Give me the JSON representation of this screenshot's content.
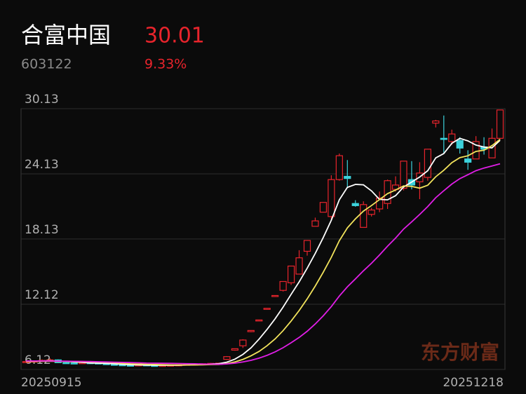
{
  "header": {
    "name": "合富中国",
    "price": "30.01",
    "code": "603122",
    "change": "9.33%"
  },
  "watermark": "东方财富",
  "chart_data": {
    "type": "candlestick",
    "categories": [
      "20250915",
      null,
      null,
      null,
      null,
      null,
      null,
      null,
      null,
      null,
      null,
      null,
      null,
      null,
      null,
      null,
      null,
      null,
      null,
      null,
      null,
      null,
      null,
      null,
      null,
      null,
      null,
      null,
      null,
      null,
      null,
      null,
      null,
      null,
      null,
      null,
      null,
      null,
      null,
      null,
      null,
      null,
      null,
      null,
      null,
      null,
      null,
      null,
      null,
      null,
      null,
      null,
      null,
      null,
      null,
      null,
      null,
      null,
      null,
      "20251218"
    ],
    "open": [
      6.8,
      6.85,
      6.9,
      6.95,
      7.0,
      6.75,
      6.72,
      6.7,
      6.75,
      6.72,
      6.66,
      6.6,
      6.56,
      6.52,
      6.5,
      6.55,
      6.5,
      6.48,
      6.5,
      6.52,
      6.55,
      6.6,
      6.62,
      6.65,
      6.68,
      7.05,
      7.9,
      8.3,
      9.6,
      10.6,
      11.7,
      12.93,
      13.4,
      14.1,
      14.9,
      17.0,
      19.3,
      20.6,
      20.2,
      23.6,
      23.9,
      21.4,
      19.2,
      20.4,
      20.9,
      21.4,
      22.7,
      22.8,
      23.6,
      23.4,
      23.8,
      28.8,
      27.4,
      27.1,
      27.2,
      25.5,
      25.5,
      26.6,
      25.6,
      27.4
    ],
    "high": [
      6.9,
      6.95,
      7.05,
      7.15,
      7.05,
      6.8,
      6.76,
      6.78,
      6.78,
      6.74,
      6.68,
      6.62,
      6.58,
      6.54,
      6.58,
      6.57,
      6.52,
      6.52,
      6.55,
      6.58,
      6.63,
      6.65,
      6.68,
      6.72,
      6.74,
      7.35,
      8.05,
      8.9,
      9.71,
      10.68,
      11.75,
      12.93,
      14.22,
      15.64,
      17.1,
      18.0,
      20.1,
      21.5,
      24.0,
      26.0,
      25.4,
      21.7,
      21.6,
      21.0,
      22.5,
      23.6,
      23.9,
      25.3,
      25.3,
      25.2,
      26.4,
      29.1,
      29.5,
      28.2,
      27.5,
      26.3,
      27.6,
      27.5,
      28.3,
      30.01
    ],
    "low": [
      6.78,
      6.82,
      6.86,
      6.92,
      6.72,
      6.66,
      6.66,
      6.68,
      6.7,
      6.62,
      6.58,
      6.52,
      6.48,
      6.47,
      6.48,
      6.47,
      6.45,
      6.46,
      6.48,
      6.5,
      6.53,
      6.58,
      6.6,
      6.63,
      6.66,
      7.0,
      7.85,
      8.1,
      9.55,
      10.6,
      11.7,
      12.93,
      13.3,
      13.9,
      14.9,
      16.6,
      19.3,
      20.6,
      19.9,
      23.5,
      22.8,
      21.1,
      19.2,
      20.2,
      20.6,
      20.9,
      22.5,
      22.6,
      22.7,
      21.8,
      23.5,
      28.4,
      26.0,
      26.8,
      26.0,
      24.5,
      25.5,
      25.9,
      25.6,
      27.3
    ],
    "close": [
      6.85,
      6.9,
      6.95,
      7.0,
      6.75,
      6.7,
      6.7,
      6.75,
      6.72,
      6.65,
      6.6,
      6.55,
      6.5,
      6.5,
      6.55,
      6.5,
      6.48,
      6.5,
      6.52,
      6.55,
      6.6,
      6.62,
      6.65,
      6.68,
      6.7,
      7.3,
      8.03,
      8.83,
      9.71,
      10.68,
      11.75,
      12.93,
      14.22,
      15.64,
      16.4,
      18.0,
      19.8,
      21.5,
      23.6,
      25.8,
      23.7,
      21.2,
      21.3,
      20.8,
      21.9,
      23.5,
      23.1,
      25.3,
      23.1,
      24.2,
      26.4,
      29.0,
      27.3,
      27.8,
      26.5,
      25.2,
      27.1,
      26.4,
      27.4,
      30.01
    ],
    "up_color": "#e8242c",
    "down_color": "#3cd2dc",
    "lines": [
      {
        "color": "#ffffff",
        "values": [
          6.85,
          6.88,
          6.9,
          6.93,
          6.89,
          6.86,
          6.82,
          6.78,
          6.72,
          6.7,
          6.68,
          6.65,
          6.6,
          6.56,
          6.54,
          6.52,
          6.51,
          6.51,
          6.51,
          6.51,
          6.53,
          6.56,
          6.59,
          6.62,
          6.65,
          6.79,
          7.07,
          7.51,
          8.11,
          8.91,
          9.8,
          10.78,
          11.86,
          13.04,
          14.19,
          15.44,
          16.81,
          18.27,
          19.86,
          21.74,
          22.88,
          23.16,
          23.12,
          22.56,
          21.78,
          21.74,
          22.12,
          22.92,
          23.38,
          23.84,
          24.42,
          25.6,
          26.0,
          26.94,
          27.4,
          27.16,
          26.78,
          26.6,
          26.52,
          27.22
        ]
      },
      {
        "color": "#f2e35c",
        "values": [
          6.85,
          6.86,
          6.87,
          6.88,
          6.87,
          6.86,
          6.85,
          6.84,
          6.82,
          6.8,
          6.77,
          6.74,
          6.69,
          6.64,
          6.62,
          6.6,
          6.58,
          6.56,
          6.54,
          6.53,
          6.53,
          6.54,
          6.55,
          6.57,
          6.58,
          6.66,
          6.82,
          7.05,
          7.37,
          7.78,
          8.3,
          8.93,
          9.69,
          10.58,
          11.55,
          12.62,
          13.8,
          15.07,
          16.45,
          17.97,
          19.16,
          19.99,
          20.7,
          21.21,
          21.76,
          22.31,
          22.64,
          23.02,
          22.97,
          22.81,
          23.08,
          23.86,
          24.46,
          25.16,
          25.62,
          25.79,
          26.19,
          26.3,
          26.73,
          27.31
        ]
      },
      {
        "color": "#e01ee6",
        "values": [
          6.9,
          6.9,
          6.9,
          6.9,
          6.89,
          6.88,
          6.87,
          6.86,
          6.85,
          6.83,
          6.81,
          6.79,
          6.77,
          6.75,
          6.73,
          6.71,
          6.7,
          6.69,
          6.68,
          6.67,
          6.65,
          6.64,
          6.62,
          6.61,
          6.6,
          6.63,
          6.7,
          6.81,
          6.96,
          7.16,
          7.42,
          7.74,
          8.12,
          8.58,
          9.07,
          9.64,
          10.31,
          11.06,
          11.91,
          12.88,
          13.73,
          14.46,
          15.2,
          15.9,
          16.66,
          17.47,
          18.22,
          19.05,
          19.71,
          20.39,
          21.12,
          21.93,
          22.58,
          23.19,
          23.69,
          24.05,
          24.42,
          24.66,
          24.85,
          25.06
        ]
      }
    ],
    "ylim": [
      6.12,
      30.13
    ],
    "yticks": [
      6.12,
      12.12,
      18.13,
      24.13,
      30.13
    ],
    "grid": true
  }
}
